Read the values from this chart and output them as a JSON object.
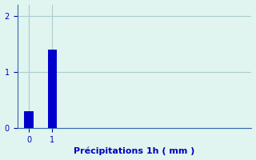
{
  "categories": [
    0,
    1
  ],
  "values": [
    0.3,
    1.4
  ],
  "bar_color": "#0000cc",
  "bar_width": 0.4,
  "background_color": "#e0f5f0",
  "xlabel": "Précipitations 1h ( mm )",
  "xlabel_color": "#0000bb",
  "xlabel_fontsize": 8,
  "tick_color": "#0000bb",
  "tick_fontsize": 7,
  "ylim": [
    0,
    2.2
  ],
  "yticks": [
    0,
    1,
    2
  ],
  "xlim": [
    -0.5,
    9.5
  ],
  "xticks": [
    0,
    1
  ],
  "grid_color": "#aacccc",
  "spine_color": "#3366aa"
}
